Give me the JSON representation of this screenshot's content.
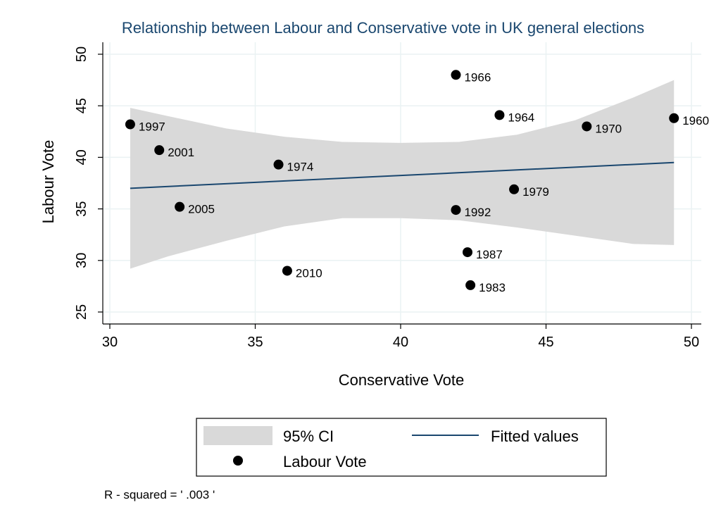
{
  "chart_data": {
    "type": "scatter",
    "title": "Relationship between Labour and Conservative vote in UK general elections",
    "xlabel": "Conservative Vote",
    "ylabel": "Labour Vote",
    "xlim": [
      30,
      50
    ],
    "ylim": [
      25,
      50
    ],
    "x_ticks": [
      30,
      35,
      40,
      45,
      50
    ],
    "y_ticks": [
      25,
      30,
      35,
      40,
      45,
      50
    ],
    "grid": true,
    "points": [
      {
        "label": "1997",
        "x": 30.7,
        "y": 43.2
      },
      {
        "label": "2001",
        "x": 31.7,
        "y": 40.7
      },
      {
        "label": "2005",
        "x": 32.4,
        "y": 35.2
      },
      {
        "label": "1974",
        "x": 35.8,
        "y": 39.3
      },
      {
        "label": "2010",
        "x": 36.1,
        "y": 29.0
      },
      {
        "label": "1966",
        "x": 41.9,
        "y": 48.0
      },
      {
        "label": "1992",
        "x": 41.9,
        "y": 34.9
      },
      {
        "label": "1987",
        "x": 42.3,
        "y": 30.8
      },
      {
        "label": "1983",
        "x": 42.4,
        "y": 27.6
      },
      {
        "label": "1964",
        "x": 43.4,
        "y": 44.1
      },
      {
        "label": "1979",
        "x": 43.9,
        "y": 36.9
      },
      {
        "label": "1970",
        "x": 46.4,
        "y": 43.0
      },
      {
        "label": "1960",
        "x": 49.4,
        "y": 43.8
      }
    ],
    "fitted_line": [
      [
        30.7,
        37.0
      ],
      [
        49.4,
        39.5
      ]
    ],
    "ci_band": {
      "x": [
        30.7,
        32.0,
        34.0,
        36.0,
        38.0,
        40.0,
        42.0,
        44.0,
        46.0,
        48.0,
        49.4
      ],
      "upper": [
        44.8,
        44.0,
        42.8,
        42.0,
        41.5,
        41.4,
        41.5,
        42.2,
        43.6,
        45.8,
        47.5
      ],
      "lower": [
        29.2,
        30.4,
        31.9,
        33.3,
        34.1,
        34.1,
        33.9,
        33.2,
        32.4,
        31.6,
        31.5
      ]
    },
    "legend": {
      "placement": "bottom",
      "items": [
        "95% CI",
        "Fitted values",
        "Labour Vote"
      ]
    },
    "note": "R - squared = ' .003 '",
    "colors": {
      "ci": "#d9d9d9",
      "line": "#1a476f",
      "points": "#000000",
      "title": "#1a476f",
      "grid": "#eaf2f3"
    }
  }
}
